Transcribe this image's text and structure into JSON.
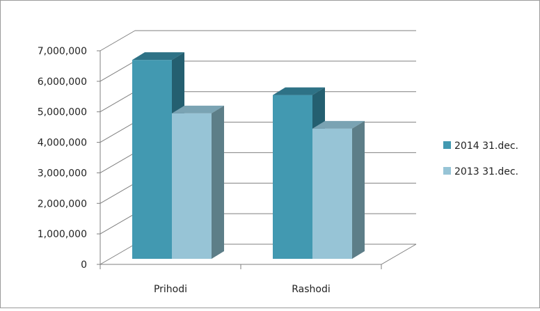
{
  "chart_data": {
    "type": "bar",
    "title": "",
    "xlabel": "",
    "ylabel": "",
    "categories": [
      "Prihodi",
      "Rashodi"
    ],
    "series": [
      {
        "name": "2014 31.dec.",
        "values": [
          6700000,
          5550000
        ]
      },
      {
        "name": "2013 31.dec.",
        "values": [
          4950000,
          4450000
        ]
      }
    ],
    "ylim": [
      0,
      7000000
    ],
    "yticks": [
      {
        "value": 0,
        "label": "0"
      },
      {
        "value": 1000000,
        "label": "1,000,000"
      },
      {
        "value": 2000000,
        "label": "2,000,000"
      },
      {
        "value": 3000000,
        "label": "3,000,000"
      },
      {
        "value": 4000000,
        "label": "4,000,000"
      },
      {
        "value": 5000000,
        "label": "5,000,000"
      },
      {
        "value": 6000000,
        "label": "6,000,000"
      },
      {
        "value": 7000000,
        "label": "7,000,000"
      }
    ],
    "grid": true,
    "legend_position": "right",
    "style": "3d-clustered-column",
    "colors": {
      "series": [
        {
          "front": "#4299b1",
          "top": "#2e7286",
          "side": "#245f70"
        },
        {
          "front": "#97c4d6",
          "top": "#7aa3b3",
          "side": "#5d7e88"
        }
      ],
      "grid": "#7f7f7f",
      "axis": "#7f7f7f"
    }
  }
}
